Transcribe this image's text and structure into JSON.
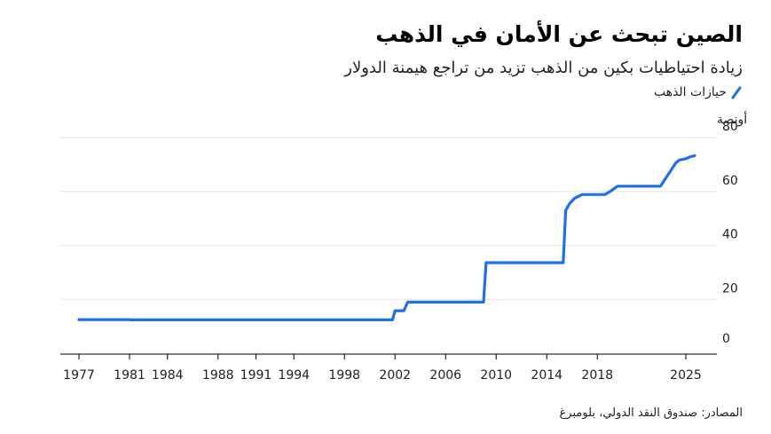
{
  "header": {
    "title": "الصين تبحث عن الأمان في الذهب",
    "subtitle": "زيادة احتياطيات بكين من الذهب تزيد من تراجع هيمنة الدولار"
  },
  "footer": {
    "source": "المصادر: صندوق النقد الدولي، بلومبرغ"
  },
  "colors": {
    "series": "#1f6fe5",
    "grid": "#e6e6e6",
    "axis": "#000000"
  },
  "chart_data": {
    "type": "line",
    "title": "الصين تبحث عن الأمان في الذهب",
    "subtitle": "زيادة احتياطيات بكين من الذهب تزيد من تراجع هيمنة الدولار",
    "ylabel_unit": "أونصة",
    "ylim": [
      0,
      80
    ],
    "xlim": [
      1977,
      2025
    ],
    "yticks": [
      0,
      20,
      40,
      60,
      80
    ],
    "xtick_labels": [
      "1977",
      "1981",
      "1984",
      "1988",
      "1991",
      "1994",
      "1998",
      "2002",
      "2006",
      "2010",
      "2014",
      "2018",
      "2025"
    ],
    "xtick_values": [
      1977,
      1981,
      1984,
      1988,
      1991,
      1994,
      1998,
      2002,
      2006,
      2010,
      2014,
      2018,
      2025
    ],
    "grid": true,
    "legend": "top-right",
    "series": [
      {
        "name": "حيازات الذهب",
        "points": [
          [
            1977,
            12.8
          ],
          [
            1981,
            12.8
          ],
          [
            1981.1,
            12.7
          ],
          [
            2001.8,
            12.7
          ],
          [
            2002.0,
            16.1
          ],
          [
            2002.7,
            16.1
          ],
          [
            2003.0,
            19.3
          ],
          [
            2009.0,
            19.3
          ],
          [
            2009.2,
            33.9
          ],
          [
            2015.3,
            33.9
          ],
          [
            2015.5,
            53.3
          ],
          [
            2015.8,
            55.8
          ],
          [
            2016.2,
            57.8
          ],
          [
            2016.8,
            59.2
          ],
          [
            2018.6,
            59.2
          ],
          [
            2019.0,
            60.3
          ],
          [
            2019.6,
            62.3
          ],
          [
            2023.0,
            62.3
          ],
          [
            2023.4,
            65.2
          ],
          [
            2023.8,
            68.0
          ],
          [
            2024.2,
            70.9
          ],
          [
            2024.5,
            72.0
          ],
          [
            2025.0,
            72.5
          ],
          [
            2025.4,
            73.3
          ],
          [
            2025.7,
            73.6
          ]
        ]
      }
    ]
  }
}
